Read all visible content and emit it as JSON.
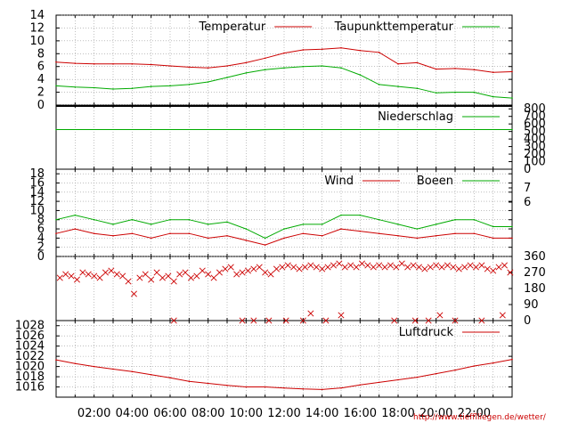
{
  "chart_data": [
    {
      "type": "line",
      "panel": "temperature",
      "ylim": [
        0,
        14
      ],
      "y_ticks": [
        "0",
        "2",
        "4",
        "6",
        "8",
        "10",
        "12",
        "14"
      ],
      "grid": true,
      "legend_position": "top-right",
      "series": [
        {
          "name": "Temperatur",
          "color": "#cc0000",
          "x": [
            0,
            1,
            2,
            3,
            4,
            5,
            6,
            7,
            8,
            9,
            10,
            11,
            12,
            13,
            14,
            15,
            16,
            17,
            18,
            19,
            20,
            21,
            22,
            23,
            24
          ],
          "values": [
            6.7,
            6.5,
            6.4,
            6.4,
            6.4,
            6.3,
            6.1,
            5.9,
            5.8,
            6.1,
            6.6,
            7.3,
            8.1,
            8.6,
            8.7,
            8.9,
            8.5,
            8.2,
            6.4,
            6.6,
            5.6,
            5.7,
            5.5,
            5.1,
            5.2
          ]
        },
        {
          "name": "Taupunkttemperatur",
          "color": "#00aa00",
          "x": [
            0,
            1,
            2,
            3,
            4,
            5,
            6,
            7,
            8,
            9,
            10,
            11,
            12,
            13,
            14,
            15,
            16,
            17,
            18,
            19,
            20,
            21,
            22,
            23,
            24
          ],
          "values": [
            3.0,
            2.8,
            2.7,
            2.5,
            2.6,
            2.9,
            3.0,
            3.2,
            3.6,
            4.3,
            5.0,
            5.5,
            5.8,
            6.0,
            6.1,
            5.8,
            4.7,
            3.2,
            2.9,
            2.6,
            1.9,
            2.0,
            2.0,
            1.3,
            1.1
          ]
        }
      ]
    },
    {
      "type": "line",
      "panel": "precipitation",
      "ylim": [
        0,
        800
      ],
      "y_ticks_right": [
        "0",
        "100",
        "200",
        "300",
        "400",
        "500",
        "600",
        "700",
        "800"
      ],
      "legend_position": "top-right",
      "series": [
        {
          "name": "Niederschlag",
          "color": "#00aa00",
          "x": [
            0,
            24
          ],
          "values": [
            525,
            525
          ]
        }
      ]
    },
    {
      "type": "line",
      "panel": "wind",
      "ylim": [
        0,
        19
      ],
      "y_ticks": [
        "0",
        "2",
        "4",
        "6",
        "8",
        "10",
        "12",
        "14",
        "16",
        "18"
      ],
      "y_ticks_right": [
        "6",
        "7"
      ],
      "legend_position": "top-right",
      "series": [
        {
          "name": "Wind",
          "color": "#cc0000",
          "x": [
            0,
            1,
            2,
            3,
            4,
            5,
            6,
            7,
            8,
            9,
            10,
            11,
            12,
            13,
            14,
            15,
            16,
            17,
            18,
            19,
            20,
            21,
            22,
            23,
            24
          ],
          "values": [
            5,
            6,
            5,
            4.5,
            5,
            4,
            5,
            5,
            4,
            4.5,
            3.5,
            2.5,
            4,
            5,
            4.5,
            6,
            5.5,
            5,
            4.5,
            4,
            4.5,
            5,
            5,
            4,
            4
          ]
        },
        {
          "name": "Boeen",
          "color": "#00aa00",
          "x": [
            0,
            1,
            2,
            3,
            4,
            5,
            6,
            7,
            8,
            9,
            10,
            11,
            12,
            13,
            14,
            15,
            16,
            17,
            18,
            19,
            20,
            21,
            22,
            23,
            24
          ],
          "values": [
            8,
            9,
            8,
            7,
            8,
            7,
            8,
            8,
            7,
            7.5,
            6,
            4,
            6,
            7,
            7,
            9,
            9,
            8,
            7,
            6,
            7,
            8,
            8,
            6.5,
            6.5
          ]
        }
      ]
    },
    {
      "type": "scatter",
      "panel": "wind-direction",
      "ylim": [
        0,
        360
      ],
      "y_ticks_right": [
        "0",
        "90",
        "180",
        "270",
        "360"
      ],
      "series": [
        {
          "name": "",
          "color": "#cc0000",
          "x": [
            0.2,
            0.5,
            0.8,
            1.1,
            1.4,
            1.7,
            2.0,
            2.3,
            2.6,
            2.9,
            3.2,
            3.5,
            3.8,
            4.1,
            4.4,
            4.7,
            5.0,
            5.3,
            5.6,
            5.9,
            6.2,
            6.5,
            6.8,
            7.1,
            7.4,
            7.7,
            8.0,
            8.3,
            8.6,
            8.9,
            9.2,
            9.5,
            9.8,
            10.1,
            10.4,
            10.7,
            11.0,
            11.3,
            11.6,
            11.9,
            12.2,
            12.5,
            12.8,
            13.1,
            13.4,
            13.7,
            14.0,
            14.3,
            14.6,
            14.9,
            15.2,
            15.5,
            15.8,
            16.1,
            16.4,
            16.7,
            17.0,
            17.3,
            17.6,
            17.9,
            18.2,
            18.5,
            18.8,
            19.1,
            19.4,
            19.7,
            20.0,
            20.3,
            20.6,
            20.9,
            21.2,
            21.5,
            21.8,
            22.1,
            22.4,
            22.7,
            23.0,
            23.3,
            23.6,
            23.9
          ],
          "values": [
            240,
            260,
            250,
            230,
            270,
            260,
            250,
            240,
            270,
            280,
            260,
            250,
            220,
            150,
            240,
            260,
            230,
            270,
            240,
            250,
            220,
            260,
            270,
            240,
            250,
            280,
            260,
            240,
            270,
            290,
            300,
            260,
            270,
            280,
            290,
            300,
            270,
            260,
            290,
            300,
            310,
            300,
            290,
            300,
            310,
            300,
            290,
            300,
            310,
            320,
            300,
            310,
            300,
            320,
            310,
            300,
            310,
            300,
            310,
            300,
            320,
            300,
            310,
            300,
            290,
            300,
            310,
            300,
            310,
            300,
            290,
            300,
            310,
            300,
            310,
            290,
            280,
            300,
            310,
            270
          ]
        },
        {
          "name": "",
          "color": "#cc0000",
          "x": [
            6.2,
            9.8,
            10.4,
            11.2,
            12.1,
            13.0,
            13.4,
            14.2,
            15.0,
            17.8,
            18.9,
            19.6,
            20.2,
            21.0,
            22.4,
            23.5
          ],
          "values": [
            0,
            0,
            0,
            0,
            0,
            0,
            40,
            0,
            30,
            0,
            0,
            0,
            30,
            0,
            0,
            30
          ]
        }
      ]
    },
    {
      "type": "line",
      "panel": "pressure",
      "ylim": [
        1014,
        1029
      ],
      "y_ticks": [
        "1016",
        "1018",
        "1020",
        "1022",
        "1024",
        "1026",
        "1028"
      ],
      "x_ticks": [
        "02:00",
        "04:00",
        "06:00",
        "08:00",
        "10:00",
        "12:00",
        "14:00",
        "16:00",
        "18:00",
        "20:00",
        "22:00"
      ],
      "legend_position": "top-right",
      "series": [
        {
          "name": "Luftdruck",
          "color": "#cc0000",
          "x": [
            0,
            1,
            2,
            3,
            4,
            5,
            6,
            7,
            8,
            9,
            10,
            11,
            12,
            13,
            14,
            15,
            16,
            17,
            18,
            19,
            20,
            21,
            22,
            23,
            24
          ],
          "values": [
            1021.3,
            1020.6,
            1020.0,
            1019.5,
            1019.0,
            1018.4,
            1017.8,
            1017.1,
            1016.7,
            1016.3,
            1016.0,
            1016.0,
            1015.8,
            1015.6,
            1015.5,
            1015.8,
            1016.4,
            1016.9,
            1017.4,
            1017.9,
            1018.6,
            1019.3,
            1020.1,
            1020.7,
            1021.4
          ]
        }
      ]
    }
  ],
  "footer_url": "http://www.tiefflliegen.de/wetter/"
}
